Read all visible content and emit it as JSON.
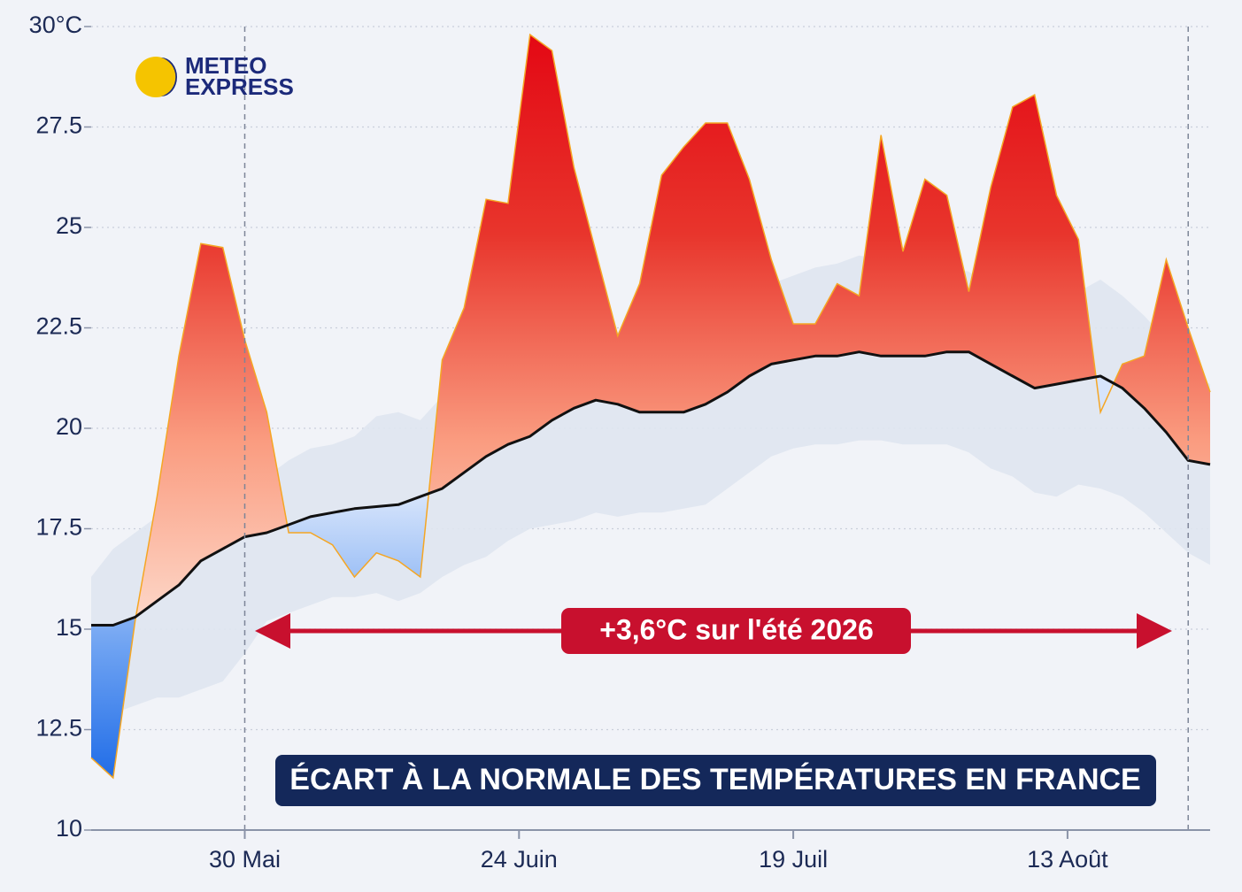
{
  "chart_data": {
    "type": "area-anomaly",
    "title": "ÉCART À LA NORMALE DES TEMPÉRATURES EN FRANCE",
    "annotation": "+3,6°C sur l'été 2026",
    "logo": {
      "line1": "METEO",
      "line2": "EXPRESS"
    },
    "x": [
      0,
      2,
      4,
      6,
      8,
      10,
      12,
      14,
      16,
      18,
      20,
      22,
      24,
      26,
      28,
      30,
      32,
      34,
      36,
      38,
      40,
      42,
      44,
      46,
      48,
      50,
      52,
      54,
      56,
      58,
      60,
      62,
      64,
      66,
      68,
      70,
      72,
      74,
      76,
      78,
      80,
      82,
      84,
      86,
      88,
      90,
      92,
      94,
      96,
      98,
      100,
      102
    ],
    "xlim": [
      0,
      102
    ],
    "xticks": [
      {
        "value": 14,
        "label": "30 Mai"
      },
      {
        "value": 39,
        "label": "24 Juin"
      },
      {
        "value": 64,
        "label": "19 Juil"
      },
      {
        "value": 89,
        "label": "13 Août"
      }
    ],
    "vlines": [
      14,
      100
    ],
    "ylim": [
      10,
      30
    ],
    "yticks": [
      10,
      12.5,
      15,
      17.5,
      20,
      22.5,
      25,
      27.5,
      {
        "value": 30,
        "label": "30°C"
      }
    ],
    "grid": true,
    "series": [
      {
        "color": "#f5a623",
        "above_color": "#e30613",
        "below_color": "#1a6ee8",
        "values": [
          11.8,
          11.3,
          15.2,
          18.3,
          21.8,
          24.6,
          24.5,
          22.2,
          20.4,
          17.4,
          17.4,
          17.1,
          16.3,
          16.9,
          16.7,
          16.3,
          21.7,
          23,
          25.7,
          25.6,
          29.8,
          29.4,
          26.5,
          24.4,
          22.3,
          23.6,
          26.3,
          27,
          27.6,
          27.6,
          26.2,
          24.2,
          22.6,
          22.6,
          23.6,
          23.3,
          27.3,
          24.4,
          26.2,
          25.8,
          23.4,
          26,
          28,
          28.3,
          25.8,
          24.7,
          20.4,
          21.6,
          21.8,
          24.2,
          22.5,
          20.9
        ]
      },
      {
        "color": "#111111",
        "values": [
          15.1,
          15.1,
          15.3,
          15.7,
          16.1,
          16.7,
          17,
          17.3,
          17.4,
          17.6,
          17.8,
          17.9,
          18,
          18.05,
          18.1,
          18.3,
          18.5,
          18.9,
          19.3,
          19.6,
          19.8,
          20.2,
          20.5,
          20.7,
          20.6,
          20.4,
          20.4,
          20.4,
          20.6,
          20.9,
          21.3,
          21.6,
          21.7,
          21.8,
          21.8,
          21.9,
          21.8,
          21.8,
          21.8,
          21.9,
          21.9,
          21.6,
          21.3,
          21,
          21.1,
          21.2,
          21.3,
          21,
          20.5,
          19.9,
          19.2,
          19.1
        ]
      }
    ],
    "band": {
      "color": "#dfe5ef",
      "upper": [
        16.3,
        17,
        17.4,
        17.8,
        18,
        18.3,
        18.5,
        18.6,
        18.8,
        19.2,
        19.5,
        19.6,
        19.8,
        20.3,
        20.4,
        20.2,
        20.8,
        21.2,
        21.6,
        21.9,
        22.1,
        22.4,
        22.6,
        22.6,
        22.4,
        22.6,
        22.5,
        22.7,
        22.6,
        22.9,
        23.2,
        23.6,
        23.8,
        24,
        24.1,
        24.3,
        24.2,
        24,
        24.1,
        24,
        23.9,
        23.5,
        23.2,
        23,
        23.1,
        23.4,
        23.7,
        23.3,
        22.8,
        22.2,
        21.4,
        21.1
      ],
      "lower": [
        12.8,
        12.9,
        13.1,
        13.3,
        13.3,
        13.5,
        13.7,
        14.4,
        15.2,
        15.4,
        15.6,
        15.8,
        15.8,
        15.9,
        15.7,
        15.9,
        16.3,
        16.6,
        16.8,
        17.2,
        17.5,
        17.6,
        17.7,
        17.9,
        17.8,
        17.9,
        17.9,
        18,
        18.1,
        18.5,
        18.9,
        19.3,
        19.5,
        19.6,
        19.6,
        19.7,
        19.7,
        19.6,
        19.6,
        19.6,
        19.4,
        19,
        18.8,
        18.4,
        18.3,
        18.6,
        18.5,
        18.3,
        17.9,
        17.4,
        16.9,
        16.6
      ]
    }
  }
}
